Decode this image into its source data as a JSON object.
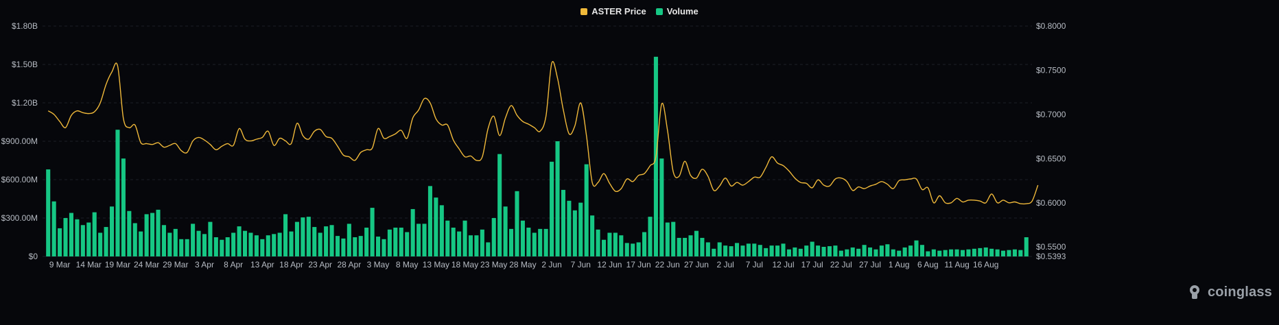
{
  "legend": {
    "price_label": "ASTER Price",
    "volume_label": "Volume"
  },
  "watermark": "coinglass",
  "colors": {
    "price": "#f0b93a",
    "volume": "#16c784",
    "grid": "#1c1f27",
    "axis_text": "#b7bcc4",
    "bg": "#06070b"
  },
  "chart_data": {
    "type": "bar+line",
    "left_axis": {
      "ticks": [
        0,
        300000000,
        600000000,
        900000000,
        1200000000,
        1500000000,
        1800000000
      ],
      "tick_labels": [
        "$0",
        "$300.00M",
        "$600.00M",
        "$900.00M",
        "$1.20B",
        "$1.50B",
        "$1.80B"
      ],
      "range": [
        0,
        1800000000
      ]
    },
    "right_axis": {
      "ticks": [
        0.5393,
        0.55,
        0.6,
        0.65,
        0.7,
        0.75,
        0.8
      ],
      "tick_labels": [
        "$0.5393",
        "$0.5500",
        "$0.6000",
        "$0.6500",
        "$0.7000",
        "$0.7500",
        "$0.8000"
      ],
      "range": [
        0.5393,
        0.8
      ]
    },
    "x_tick_labels": [
      "9 Mar",
      "14 Mar",
      "19 Mar",
      "24 Mar",
      "29 Mar",
      "3 Apr",
      "8 Apr",
      "13 Apr",
      "18 Apr",
      "23 Apr",
      "28 Apr",
      "3 May",
      "8 May",
      "13 May",
      "18 May",
      "23 May",
      "28 May",
      "2 Jun",
      "7 Jun",
      "12 Jun",
      "17 Jun",
      "22 Jun",
      "27 Jun",
      "2 Jul",
      "7 Jul",
      "12 Jul",
      "17 Jul",
      "22 Jul",
      "27 Jul",
      "1 Aug",
      "6 Aug",
      "11 Aug",
      "16 Aug"
    ],
    "x_tick_day_index": [
      2,
      7,
      12,
      17,
      22,
      27,
      32,
      37,
      42,
      47,
      52,
      57,
      62,
      67,
      72,
      77,
      82,
      87,
      92,
      97,
      102,
      107,
      112,
      117,
      122,
      127,
      132,
      137,
      142,
      147,
      152,
      157,
      162
    ],
    "series": [
      {
        "name": "Volume",
        "type": "bar",
        "axis": "left",
        "values": [
          680000000,
          430000000,
          220000000,
          300000000,
          340000000,
          290000000,
          245000000,
          265000000,
          345000000,
          185000000,
          230000000,
          390000000,
          990000000,
          765000000,
          355000000,
          260000000,
          195000000,
          330000000,
          340000000,
          365000000,
          245000000,
          185000000,
          215000000,
          135000000,
          135000000,
          255000000,
          200000000,
          175000000,
          270000000,
          150000000,
          130000000,
          150000000,
          185000000,
          235000000,
          200000000,
          185000000,
          165000000,
          135000000,
          165000000,
          175000000,
          185000000,
          330000000,
          195000000,
          270000000,
          305000000,
          310000000,
          230000000,
          185000000,
          235000000,
          245000000,
          160000000,
          140000000,
          255000000,
          150000000,
          160000000,
          225000000,
          380000000,
          155000000,
          135000000,
          210000000,
          225000000,
          225000000,
          190000000,
          370000000,
          255000000,
          255000000,
          550000000,
          460000000,
          400000000,
          280000000,
          225000000,
          195000000,
          280000000,
          165000000,
          165000000,
          210000000,
          110000000,
          300000000,
          800000000,
          390000000,
          215000000,
          510000000,
          280000000,
          225000000,
          185000000,
          215000000,
          215000000,
          740000000,
          900000000,
          520000000,
          435000000,
          360000000,
          420000000,
          720000000,
          320000000,
          210000000,
          130000000,
          185000000,
          185000000,
          165000000,
          105000000,
          100000000,
          110000000,
          190000000,
          310000000,
          1560000000,
          765000000,
          265000000,
          270000000,
          145000000,
          145000000,
          165000000,
          200000000,
          145000000,
          110000000,
          60000000,
          110000000,
          85000000,
          80000000,
          105000000,
          85000000,
          100000000,
          100000000,
          90000000,
          65000000,
          85000000,
          85000000,
          100000000,
          55000000,
          70000000,
          60000000,
          85000000,
          115000000,
          85000000,
          75000000,
          80000000,
          85000000,
          45000000,
          55000000,
          70000000,
          60000000,
          90000000,
          70000000,
          55000000,
          85000000,
          95000000,
          55000000,
          45000000,
          70000000,
          85000000,
          125000000,
          90000000,
          40000000,
          55000000,
          45000000,
          50000000,
          55000000,
          55000000,
          50000000,
          55000000,
          60000000,
          65000000,
          70000000,
          60000000,
          55000000,
          45000000,
          50000000,
          55000000,
          50000000,
          150000000
        ]
      },
      {
        "name": "ASTER Price",
        "type": "line",
        "axis": "right",
        "values": [
          0.704,
          0.7,
          0.692,
          0.685,
          0.699,
          0.704,
          0.702,
          0.701,
          0.703,
          0.713,
          0.734,
          0.748,
          0.755,
          0.695,
          0.685,
          0.688,
          0.668,
          0.667,
          0.666,
          0.668,
          0.663,
          0.665,
          0.667,
          0.659,
          0.657,
          0.67,
          0.674,
          0.671,
          0.666,
          0.66,
          0.664,
          0.667,
          0.665,
          0.684,
          0.672,
          0.67,
          0.672,
          0.674,
          0.681,
          0.665,
          0.673,
          0.67,
          0.667,
          0.69,
          0.676,
          0.672,
          0.681,
          0.683,
          0.675,
          0.673,
          0.664,
          0.654,
          0.652,
          0.648,
          0.657,
          0.66,
          0.662,
          0.684,
          0.673,
          0.675,
          0.678,
          0.682,
          0.673,
          0.696,
          0.705,
          0.718,
          0.713,
          0.695,
          0.688,
          0.688,
          0.671,
          0.661,
          0.652,
          0.653,
          0.648,
          0.652,
          0.684,
          0.698,
          0.676,
          0.696,
          0.71,
          0.699,
          0.692,
          0.689,
          0.685,
          0.681,
          0.698,
          0.758,
          0.741,
          0.705,
          0.678,
          0.687,
          0.713,
          0.676,
          0.623,
          0.623,
          0.633,
          0.622,
          0.613,
          0.616,
          0.627,
          0.624,
          0.631,
          0.633,
          0.642,
          0.652,
          0.712,
          0.682,
          0.635,
          0.63,
          0.647,
          0.631,
          0.628,
          0.638,
          0.63,
          0.614,
          0.619,
          0.628,
          0.619,
          0.623,
          0.62,
          0.624,
          0.629,
          0.629,
          0.64,
          0.652,
          0.645,
          0.642,
          0.636,
          0.628,
          0.623,
          0.622,
          0.617,
          0.626,
          0.62,
          0.619,
          0.627,
          0.628,
          0.624,
          0.614,
          0.618,
          0.616,
          0.619,
          0.621,
          0.624,
          0.621,
          0.616,
          0.625,
          0.626,
          0.627,
          0.627,
          0.615,
          0.617,
          0.6,
          0.608,
          0.6,
          0.6,
          0.605,
          0.601,
          0.603,
          0.603,
          0.602,
          0.6,
          0.61,
          0.6,
          0.603,
          0.6,
          0.601,
          0.599,
          0.599,
          0.602,
          0.62
        ]
      }
    ],
    "grid": true,
    "legend_position": "top-center"
  }
}
